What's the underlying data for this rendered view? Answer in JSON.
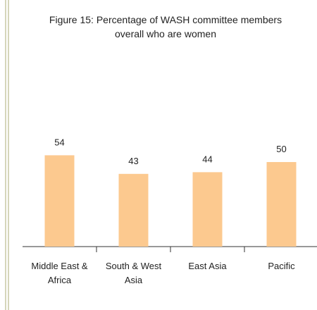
{
  "chart_data": {
    "type": "bar",
    "title": "Figure 15: Percentage of WASH committee members overall who are women",
    "categories": [
      "Middle East & Africa",
      "South & West Asia",
      "East Asia",
      "Pacific"
    ],
    "values": [
      54,
      43,
      44,
      50
    ],
    "color": "#fcc98f"
  }
}
